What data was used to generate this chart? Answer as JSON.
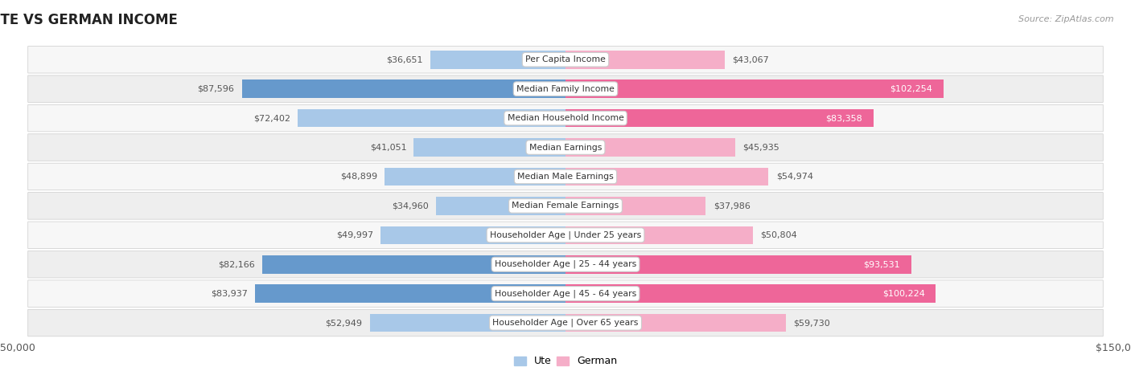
{
  "title": "UTE VS GERMAN INCOME",
  "source": "Source: ZipAtlas.com",
  "categories": [
    "Per Capita Income",
    "Median Family Income",
    "Median Household Income",
    "Median Earnings",
    "Median Male Earnings",
    "Median Female Earnings",
    "Householder Age | Under 25 years",
    "Householder Age | 25 - 44 years",
    "Householder Age | 45 - 64 years",
    "Householder Age | Over 65 years"
  ],
  "ute_values": [
    36651,
    87596,
    72402,
    41051,
    48899,
    34960,
    49997,
    82166,
    83937,
    52949
  ],
  "german_values": [
    43067,
    102254,
    83358,
    45935,
    54974,
    37986,
    50804,
    93531,
    100224,
    59730
  ],
  "ute_labels": [
    "$36,651",
    "$87,596",
    "$72,402",
    "$41,051",
    "$48,899",
    "$34,960",
    "$49,997",
    "$82,166",
    "$83,937",
    "$52,949"
  ],
  "german_labels": [
    "$43,067",
    "$102,254",
    "$83,358",
    "$45,935",
    "$54,974",
    "$37,986",
    "$50,804",
    "$93,531",
    "$100,224",
    "$59,730"
  ],
  "ute_color_light": "#a8c8e8",
  "ute_color_dark": "#6699cc",
  "german_color_light": "#f5aec8",
  "german_color_dark": "#ee6699",
  "axis_limit": 150000,
  "bar_height": 0.62,
  "bg_color": "#ffffff",
  "row_bg_colors": [
    "#f7f7f7",
    "#eeeeee"
  ],
  "label_inside_threshold_german": 80000,
  "label_inside_threshold_ute": 75000
}
